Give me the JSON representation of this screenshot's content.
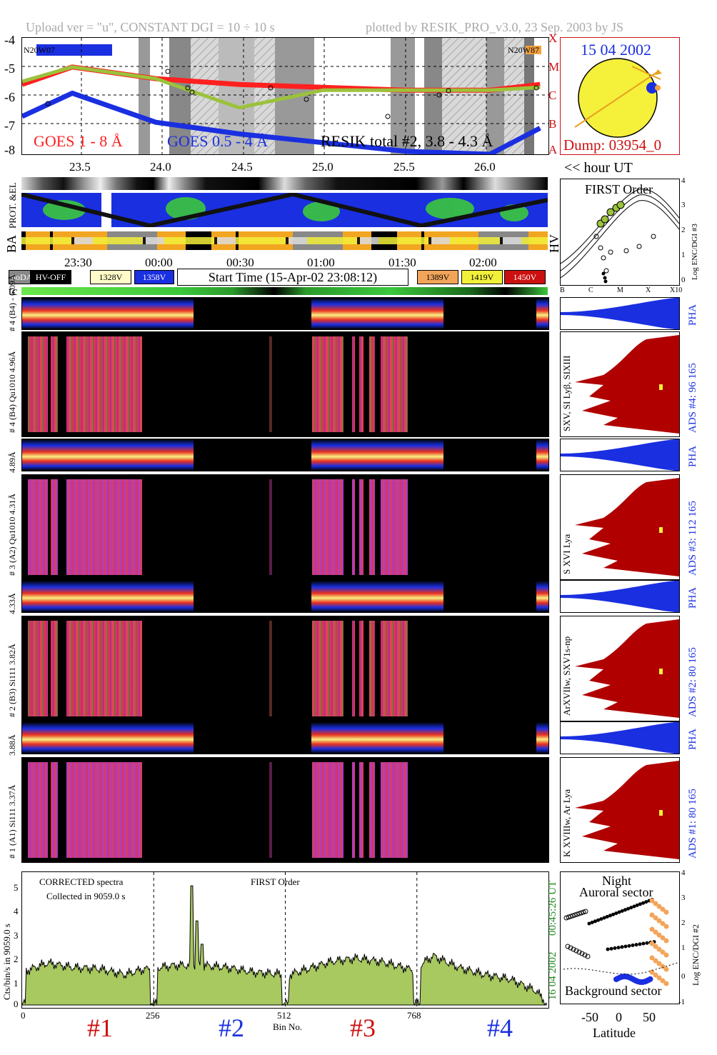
{
  "header": {
    "upload": "Upload ver = \"u\", CONSTANT  DGI =  10 ÷  10 s",
    "plotted": "plotted by RESIK_PRO_v3.0, 23 Sep. 2003 by JS"
  },
  "goes": {
    "yticks": [
      "-4",
      "-5",
      "-6",
      "-7",
      "-8"
    ],
    "classes": [
      "X",
      "M",
      "C",
      "B",
      "A"
    ],
    "n_left": "N20W07",
    "n_right": "N20W87",
    "label1": "GOES 1 - 8 Å",
    "label2": "GOES 0.5 - 4 Å",
    "label3": "RESIK total #2, 3.8 - 4.3 Å",
    "hour_ticks": [
      "23.5",
      "24.0",
      "24.5",
      "25.0",
      "25.5",
      "26.0"
    ],
    "hour_unit": "<< hour UT",
    "colors": {
      "goes_long": "#ff2020",
      "goes_short": "#1a2fe0",
      "resik": "#9bc23b"
    }
  },
  "sun": {
    "date": "15 04 2002",
    "dump": "Dump: 03954_0"
  },
  "orbit": {
    "label": "PROT. &EL",
    "ba": "BA",
    "hv": "HV",
    "time_ticks": [
      "23:30",
      "00:00",
      "00:30",
      "01:00",
      "01:30",
      "02:00"
    ]
  },
  "first_order": {
    "title": "FIRST Order",
    "yticks": [
      "4",
      "3",
      "2",
      "1",
      "0"
    ],
    "xticks": [
      "B",
      "C",
      "M",
      "X",
      "X10"
    ],
    "ylabel": "Log ENC/DGI #3"
  },
  "legend": {
    "items": [
      {
        "label": "noDATA",
        "bg": "#888888",
        "fg": "#ffffff"
      },
      {
        "label": "HV-OFF",
        "bg": "#000000",
        "fg": "#ffffff"
      },
      {
        "label": "1328V",
        "bg": "#fffcc8",
        "fg": "#000000"
      },
      {
        "label": "1358V",
        "bg": "#1a2fe0",
        "fg": "#ffffff"
      },
      {
        "label": "1389V",
        "bg": "#f2a55a",
        "fg": "#000000"
      },
      {
        "label": "1419V",
        "bg": "#f2f03a",
        "fg": "#000000"
      },
      {
        "label": "1450V",
        "bg": "#cc1010",
        "fg": "#ffffff"
      }
    ],
    "start_time": "Start Time (15-Apr-02 23:08:12)",
    "tc": "tc"
  },
  "channels": [
    {
      "pha_label": "# 4 (B4) - 6.09Å",
      "main_label": "# 4 (B4) Qu1010 4.96Å",
      "side_label": "SXV, SI Lyβ, SIXIII",
      "ads": "ADS #4:   96 165",
      "pha": "PHA"
    },
    {
      "pha_label": "4.89Å",
      "main_label": "# 3 (A2) Qu1010 4.31Å",
      "side_label": "S XVI Lya",
      "ads": "ADS #3:  112 165",
      "pha": "PHA"
    },
    {
      "pha_label": "4.33Å",
      "main_label": "# 2 (B3) Si111 3.82Å",
      "side_label": "ArXVIIw, SXV1s-np",
      "ads": "ADS #2:   80 165",
      "pha": "PHA"
    },
    {
      "pha_label": "3.88Å",
      "main_label": "# 1 (A1) Si111 3.37Å",
      "side_label": "K XVIIIw, Ar Lya",
      "ads": "ADS #1:   80 165",
      "pha": "PHA"
    }
  ],
  "spectra": {
    "note1": "CORRECTED spectra",
    "note2": "Collected in  9059.0 s",
    "title": "FIRST Order",
    "yticks": [
      "5",
      "4",
      "3",
      "2",
      "1",
      "0"
    ],
    "ylabel": "Cts/bin/s in 9059.0 s",
    "xticks": [
      "0",
      "256",
      "512",
      "768"
    ],
    "xlabel": "Bin No.",
    "time": "00:45:26 UT",
    "date": "16 04 2002",
    "labels": [
      "#1",
      "#2",
      "#3",
      "#4"
    ],
    "label_colors": [
      "#cc1010",
      "#1a2fe0",
      "#cc1010",
      "#1a2fe0"
    ]
  },
  "latitude": {
    "top1": "Night",
    "top2": "Auroral sector",
    "bottom": "Background sector",
    "xticks": [
      "-50",
      "0",
      "50"
    ],
    "xlabel": "Latitude",
    "yticks": [
      "4",
      "3",
      "2",
      "1",
      "0",
      "-1"
    ],
    "ylabel": "Log ENC/DGI #2"
  },
  "chart_data": [
    {
      "type": "line",
      "title": "",
      "xlabel": "hour UT",
      "ylabel": "",
      "x": [
        23.2,
        23.5,
        24.0,
        24.5,
        25.0,
        25.5,
        26.0,
        26.3
      ],
      "series": [
        {
          "name": "GOES 1 - 8 Å",
          "values": [
            -5.6,
            -5.0,
            -5.4,
            -5.6,
            -5.7,
            -5.8,
            -5.8,
            -5.6
          ]
        },
        {
          "name": "GOES 0.5 - 4 Å",
          "values": [
            -6.7,
            -5.9,
            -6.9,
            -7.3,
            -7.6,
            -7.9,
            -8.0,
            -7.1
          ]
        },
        {
          "name": "RESIK total #2, 3.8 - 4.3 Å",
          "values": [
            -5.5,
            -5.0,
            -5.4,
            -6.4,
            -5.8,
            -5.8,
            -5.8,
            -5.7
          ]
        }
      ],
      "ylim": [
        -8,
        -4
      ],
      "xlim": [
        23.2,
        26.35
      ]
    },
    {
      "type": "area",
      "title": "",
      "xlabel": "Bin No.",
      "ylabel": "Cts/bin/s in 9059.0 s",
      "x": [
        0,
        50,
        100,
        150,
        200,
        230,
        300,
        350,
        400,
        450,
        520,
        600,
        650,
        700,
        760,
        800,
        850,
        900,
        950,
        1000,
        1020
      ],
      "series": [
        {
          "name": "",
          "values": [
            1.4,
            1.8,
            1.6,
            1.55,
            1.3,
            1.5,
            1.7,
            1.7,
            1.6,
            1.4,
            1.3,
            1.85,
            2.0,
            1.85,
            1.5,
            2.1,
            1.6,
            1.3,
            1.1,
            0.6,
            0.1
          ]
        }
      ],
      "ylim": [
        0,
        5.5
      ],
      "xlim": [
        0,
        1024
      ]
    }
  ]
}
